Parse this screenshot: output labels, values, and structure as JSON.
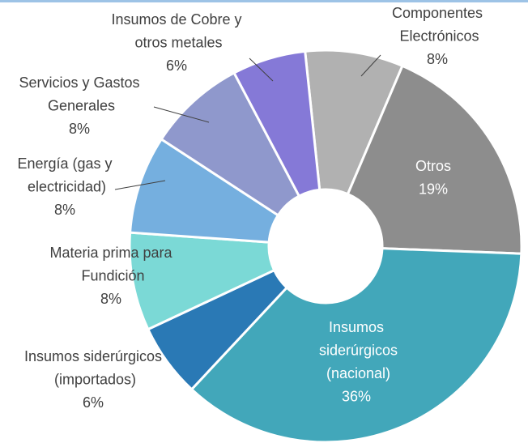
{
  "chart_data": {
    "type": "donut",
    "categories": [
      "Componentes Electrónicos",
      "Otros",
      "Insumos siderúrgicos (nacional)",
      "Insumos siderúrgicos (importados)",
      "Materia prima para Fundición",
      "Energía (gas y electricidad)",
      "Servicios y Gastos Generales",
      "Insumos de Cobre y otros metales"
    ],
    "values": [
      8,
      19,
      36,
      6,
      8,
      8,
      8,
      6
    ],
    "value_labels": [
      "8%",
      "19%",
      "36%",
      "6%",
      "8%",
      "8%",
      "8%",
      "6%"
    ],
    "colors": [
      "#b1b1b1",
      "#8d8d8d",
      "#42a7ba",
      "#2a79b5",
      "#7bd9d6",
      "#75afdf",
      "#8f98cc",
      "#8579d7"
    ]
  }
}
